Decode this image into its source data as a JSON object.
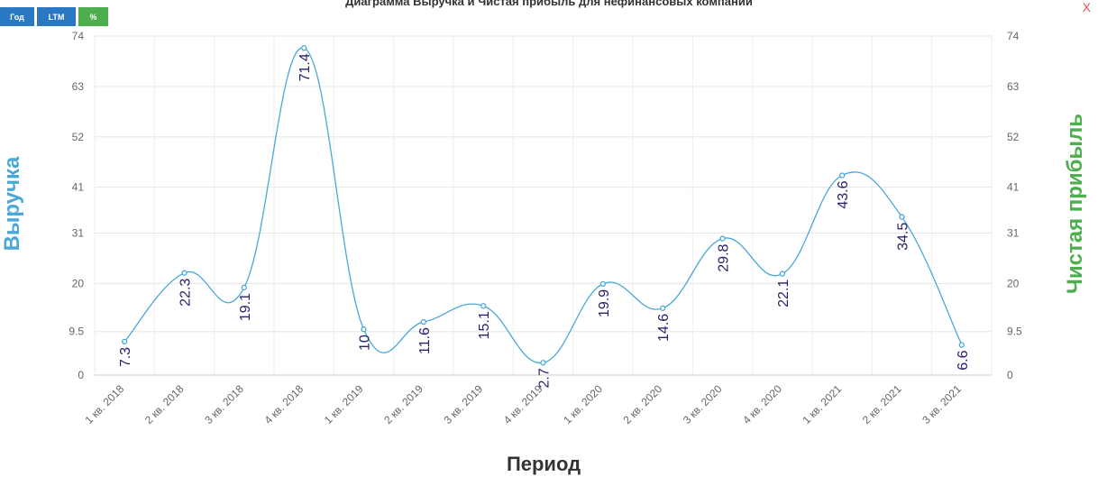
{
  "toolbar": {
    "year_label": "Год",
    "ltm_label": "LTM",
    "percent_label": "%",
    "close_label": "X"
  },
  "colors": {
    "line": "#4aa8d8",
    "left_axis_title": "#4aa8d8",
    "right_axis_title": "#4cae4c",
    "button_blue": "#2b78c2",
    "button_green": "#4cae4c",
    "data_label": "#26226b"
  },
  "chart_data": {
    "type": "line",
    "title": "Диаграмма Выручка и Чистая прибыль для нефинансовых компаний",
    "xlabel": "Период",
    "ylabel": "Выручка",
    "ylabel_right": "Чистая прибыль",
    "categories": [
      "1 кв. 2018",
      "2 кв. 2018",
      "3 кв. 2018",
      "4 кв. 2018",
      "1 кв. 2019",
      "2 кв. 2019",
      "3 кв. 2019",
      "4 кв. 2019",
      "1 кв. 2020",
      "2 кв. 2020",
      "3 кв. 2020",
      "4 кв. 2020",
      "1 кв. 2021",
      "2 кв. 2021",
      "3 кв. 2021"
    ],
    "values": [
      7.3,
      22.3,
      19.1,
      71.4,
      10,
      11.6,
      15.1,
      2.7,
      19.9,
      14.6,
      29.8,
      22.1,
      43.6,
      34.5,
      6.6
    ],
    "y_ticks": [
      "0",
      "9.5",
      "20",
      "31",
      "41",
      "52",
      "63",
      "74"
    ],
    "ylim": [
      0,
      74
    ],
    "grid": true
  }
}
